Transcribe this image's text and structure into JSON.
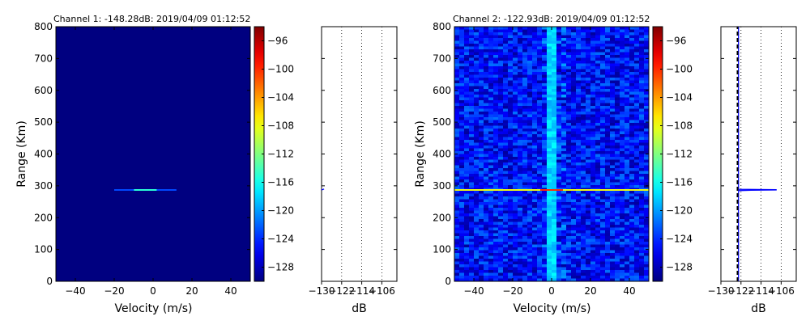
{
  "figure": {
    "colormap": "jet",
    "background": "#ffffff",
    "channel_1": {
      "title": "Channel 1: -148.28dB: 2019/04/09 01:12:52",
      "xlabel": "Velocity (m/s)",
      "ylabel": "Range (Km)",
      "profile_xlabel": "dB"
    },
    "channel_2": {
      "title": "Channel 2: -122.93dB: 2019/04/09 01:12:52",
      "xlabel": "Velocity (m/s)",
      "ylabel": "Range (Km)",
      "profile_xlabel": "dB"
    }
  },
  "chart_data": [
    {
      "type": "heatmap",
      "title": "Channel 1: -148.28dB: 2019/04/09 01:12:52",
      "xlabel": "Velocity (m/s)",
      "ylabel": "Range (Km)",
      "xlim": [
        -50,
        50
      ],
      "ylim": [
        0,
        800
      ],
      "xticks": [
        -40,
        -20,
        0,
        20,
        40
      ],
      "yticks": [
        0,
        100,
        200,
        300,
        400,
        500,
        600,
        700,
        800
      ],
      "colorbar": {
        "vmin": -130,
        "vmax": -94,
        "ticks": [
          -96,
          -100,
          -104,
          -108,
          -112,
          -116,
          -120,
          -124,
          -128
        ]
      },
      "features": [
        {
          "range_km": 287,
          "velocity_span": [
            -20,
            12
          ],
          "peak_velocity": -4,
          "peak_db": -115
        }
      ],
      "background_db": -130
    },
    {
      "type": "line",
      "title": "",
      "xlabel": "dB",
      "ylabel": "",
      "xlim": [
        -130,
        -100
      ],
      "ylim": [
        0,
        800
      ],
      "xticks": [
        -130,
        -122,
        -114,
        -106
      ],
      "grid": "x-dotted",
      "series": [
        {
          "color": "#0000ff",
          "points": [
            [
              -130,
              287
            ],
            [
              -129,
              290
            ]
          ]
        }
      ]
    },
    {
      "type": "heatmap",
      "title": "Channel 2: -122.93dB: 2019/04/09 01:12:52",
      "xlabel": "Velocity (m/s)",
      "ylabel": "Range (Km)",
      "xlim": [
        -50,
        50
      ],
      "ylim": [
        0,
        800
      ],
      "xticks": [
        -40,
        -20,
        0,
        20,
        40
      ],
      "yticks": [
        0,
        100,
        200,
        300,
        400,
        500,
        600,
        700,
        800
      ],
      "colorbar": {
        "vmin": -130,
        "vmax": -94,
        "ticks": [
          -96,
          -100,
          -104,
          -108,
          -112,
          -116,
          -120,
          -124,
          -128
        ]
      },
      "noise_db_range": [
        -129,
        -119
      ],
      "zero_velocity_column_db": -118,
      "features": [
        {
          "range_km": 287,
          "velocity_span": [
            -50,
            50
          ],
          "peak_velocity": 0,
          "peak_db": -100
        }
      ]
    },
    {
      "type": "line",
      "title": "",
      "xlabel": "dB",
      "ylabel": "",
      "xlim": [
        -130,
        -100
      ],
      "ylim": [
        0,
        800
      ],
      "xticks": [
        -130,
        -122,
        -114,
        -106
      ],
      "grid": "x-dotted",
      "series": [
        {
          "style": "solid",
          "color": "#0000ff",
          "points": [
            [
              -123,
              0
            ],
            [
              -123,
              280
            ],
            [
              -122.9,
              285
            ],
            [
              -118,
              286
            ],
            [
              -108,
              287
            ],
            [
              -108,
              288
            ],
            [
              -123,
              289
            ],
            [
              -123,
              800
            ]
          ]
        },
        {
          "style": "dashed",
          "color": "#000000",
          "points": [
            [
              -123.4,
              0
            ],
            [
              -123.4,
              800
            ]
          ]
        }
      ]
    }
  ]
}
